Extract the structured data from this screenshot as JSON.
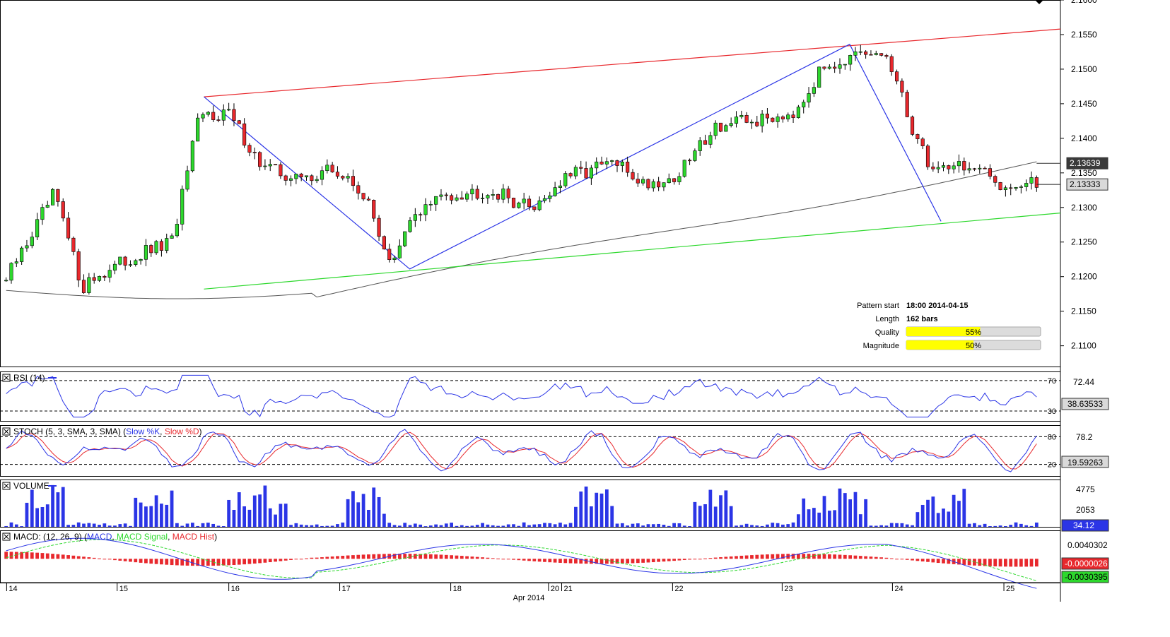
{
  "chart_data": {
    "type": "candlestick",
    "instrument_hidden": true,
    "main": {
      "y_ticks": [
        "2.1600",
        "2.1550",
        "2.1500",
        "2.1450",
        "2.1400",
        "2.1350",
        "2.1300",
        "2.1250",
        "2.1200",
        "2.1150",
        "2.1100"
      ],
      "ylim": [
        2.107,
        2.16
      ],
      "price_labels": [
        {
          "text": "2.13639",
          "value": 2.13639,
          "style": "dark"
        },
        {
          "text": "2.13333",
          "value": 2.13333,
          "style": "light"
        }
      ],
      "pattern_lines": {
        "resistance": {
          "from": [
            0.1935,
            2.146
          ],
          "to": [
            1.0,
            2.1558
          ],
          "color": "#e8282d"
        },
        "support": {
          "from": [
            0.1935,
            2.1182
          ],
          "to": [
            1.0,
            2.1292
          ],
          "color": "#2dd82d"
        },
        "zigzag": [
          [
            0.1935,
            2.146
          ],
          [
            0.3922,
            2.1211
          ],
          [
            0.817,
            2.1536
          ],
          [
            0.9052,
            2.128
          ]
        ],
        "zigzag_color": "#2b35e6"
      },
      "moving_average_color": "#555555",
      "info_panel": {
        "rows": [
          {
            "label": "Pattern start",
            "value": "18:00 2014-04-15"
          },
          {
            "label": "Length",
            "value": "162 bars"
          }
        ],
        "bars": [
          {
            "label": "Quality",
            "text": "55%",
            "fraction": 0.55
          },
          {
            "label": "Magnitude",
            "text": "50%",
            "fraction": 0.5
          }
        ],
        "bar_color": "#ffff00"
      }
    },
    "rsi": {
      "title": "RSI (14)",
      "levels": [
        70,
        30
      ],
      "level_labels": [
        "70",
        "30"
      ],
      "ylim": [
        17,
        82
      ],
      "value_labels": [
        "72.44",
        "38.63533"
      ],
      "line_color": "#2b35e6"
    },
    "stoch": {
      "title_prefix": "STOCH (5, 3, SMA, 3, SMA) (",
      "k_label": "Slow %K",
      "d_label": "Slow %D",
      "title_suffix": ")",
      "levels": [
        80,
        20
      ],
      "level_labels": [
        "80",
        "20"
      ],
      "ylim": [
        -5,
        105
      ],
      "value_labels": [
        "78.2",
        "19.59263"
      ],
      "k_color": "#2b35e6",
      "d_color": "#e8282d"
    },
    "volume": {
      "title": "VOLUME",
      "ylim": [
        0,
        6200
      ],
      "tick_labels": [
        "4775",
        "2053"
      ],
      "value_label": "34.12",
      "bar_color": "#2b35e6"
    },
    "macd": {
      "title_prefix": "MACD: (12, 26, 9) (",
      "macd_label": "MACD",
      "signal_label": "MACD Signal",
      "hist_label": "MACD Hist",
      "title_suffix": ")",
      "ylim": [
        -0.0052,
        0.0062
      ],
      "tick_labels": [
        "0.0040302"
      ],
      "value_labels": [
        {
          "text": "-0.0000026",
          "style": "red"
        },
        {
          "text": "-0.0030395",
          "style": "green"
        }
      ],
      "macd_color": "#2b35e6",
      "signal_color": "#2dd82d",
      "hist_color": "#e8282d"
    },
    "x_axis": {
      "labels": [
        {
          "text": "14",
          "pos": 0.003
        },
        {
          "text": "15",
          "pos": 0.1097
        },
        {
          "text": "16",
          "pos": 0.2175
        },
        {
          "text": "17",
          "pos": 0.3246
        },
        {
          "text": "18",
          "pos": 0.4318
        },
        {
          "text": "20",
          "pos": 0.5262
        },
        {
          "text": "21",
          "pos": 0.5389
        },
        {
          "text": "22",
          "pos": 0.646
        },
        {
          "text": "23",
          "pos": 0.7518
        },
        {
          "text": "24",
          "pos": 0.8583
        },
        {
          "text": "25",
          "pos": 0.9659
        }
      ],
      "month_label": "Apr 2014"
    },
    "colors": {
      "up": "#2dd82d",
      "down": "#e8282d",
      "wick": "#000000"
    }
  }
}
